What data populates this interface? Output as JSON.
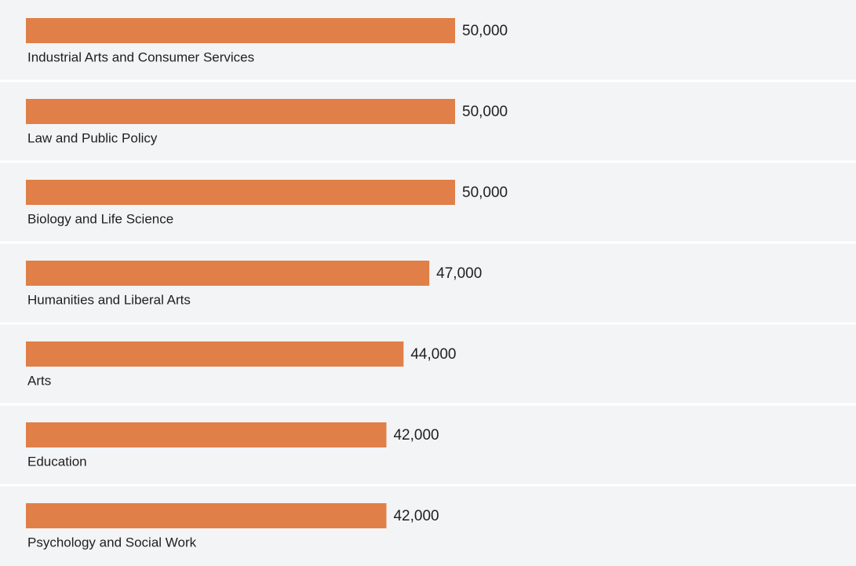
{
  "chart_data": {
    "type": "bar",
    "orientation": "horizontal",
    "categories": [
      "Industrial Arts and Consumer Services",
      "Law and Public Policy",
      "Biology and Life Science",
      "Humanities and Liberal Arts",
      "Arts",
      "Education",
      "Psychology and Social Work"
    ],
    "values": [
      50000,
      50000,
      50000,
      47000,
      44000,
      42000,
      42000
    ],
    "value_labels": [
      "50,000",
      "50,000",
      "50,000",
      "47,000",
      "44,000",
      "42,000",
      "42,000"
    ],
    "color": "#e07f48"
  }
}
